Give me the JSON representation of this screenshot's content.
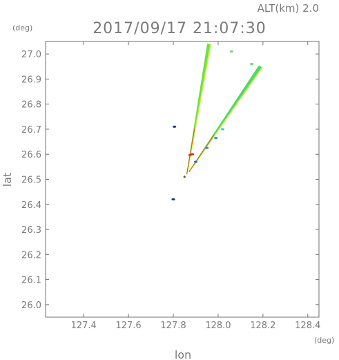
{
  "header": {
    "altitude_label": "ALT(km)  2.0",
    "timestamp": "2017/09/17  21:07:30"
  },
  "chart_data": {
    "type": "scatter",
    "xlabel": "lon",
    "ylabel": "lat",
    "x_unit": "(deg)",
    "y_unit": "(deg)",
    "xlim": [
      127.23,
      128.45
    ],
    "ylim": [
      25.95,
      27.05
    ],
    "x_ticks": [
      "127.4",
      "127.6",
      "127.8",
      "128.0",
      "128.2",
      "128.4"
    ],
    "y_ticks": [
      "26.0",
      "26.1",
      "26.2",
      "26.3",
      "26.4",
      "26.5",
      "26.6",
      "26.7",
      "26.8",
      "26.9",
      "27.0"
    ],
    "grid": false,
    "radar_origin": {
      "lon": 127.85,
      "lat": 26.51
    },
    "beams": [
      {
        "name": "north",
        "start": [
          127.86,
          26.52
        ],
        "end": [
          127.96,
          27.04
        ],
        "color": "#66e24a",
        "edge_color": "#d0f020",
        "width_deg": 0.018
      },
      {
        "name": "northeast",
        "start": [
          127.87,
          26.53
        ],
        "end": [
          128.19,
          26.95
        ],
        "color": "#4fd86a",
        "edge_color": "#c8f028",
        "width_deg": 0.02
      }
    ],
    "clusters": [
      {
        "lon": 127.99,
        "lat": 26.665,
        "color": "#2a8fe8"
      },
      {
        "lon": 127.95,
        "lat": 26.625,
        "color": "#2a8fe8"
      },
      {
        "lon": 128.02,
        "lat": 26.7,
        "color": "#39c6e0"
      },
      {
        "lon": 127.9,
        "lat": 26.57,
        "color": "#1f6ee0"
      },
      {
        "lon": 127.875,
        "lat": 26.597,
        "color": "#e03020"
      },
      {
        "lon": 127.885,
        "lat": 26.6,
        "color": "#e03020"
      },
      {
        "lon": 127.805,
        "lat": 26.71,
        "color": "#1a2fa8"
      },
      {
        "lon": 127.8,
        "lat": 26.42,
        "color": "#1a2fa8"
      },
      {
        "lon": 128.06,
        "lat": 27.01,
        "color": "#6ed86a"
      },
      {
        "lon": 128.15,
        "lat": 26.96,
        "color": "#6ed86a"
      }
    ]
  }
}
